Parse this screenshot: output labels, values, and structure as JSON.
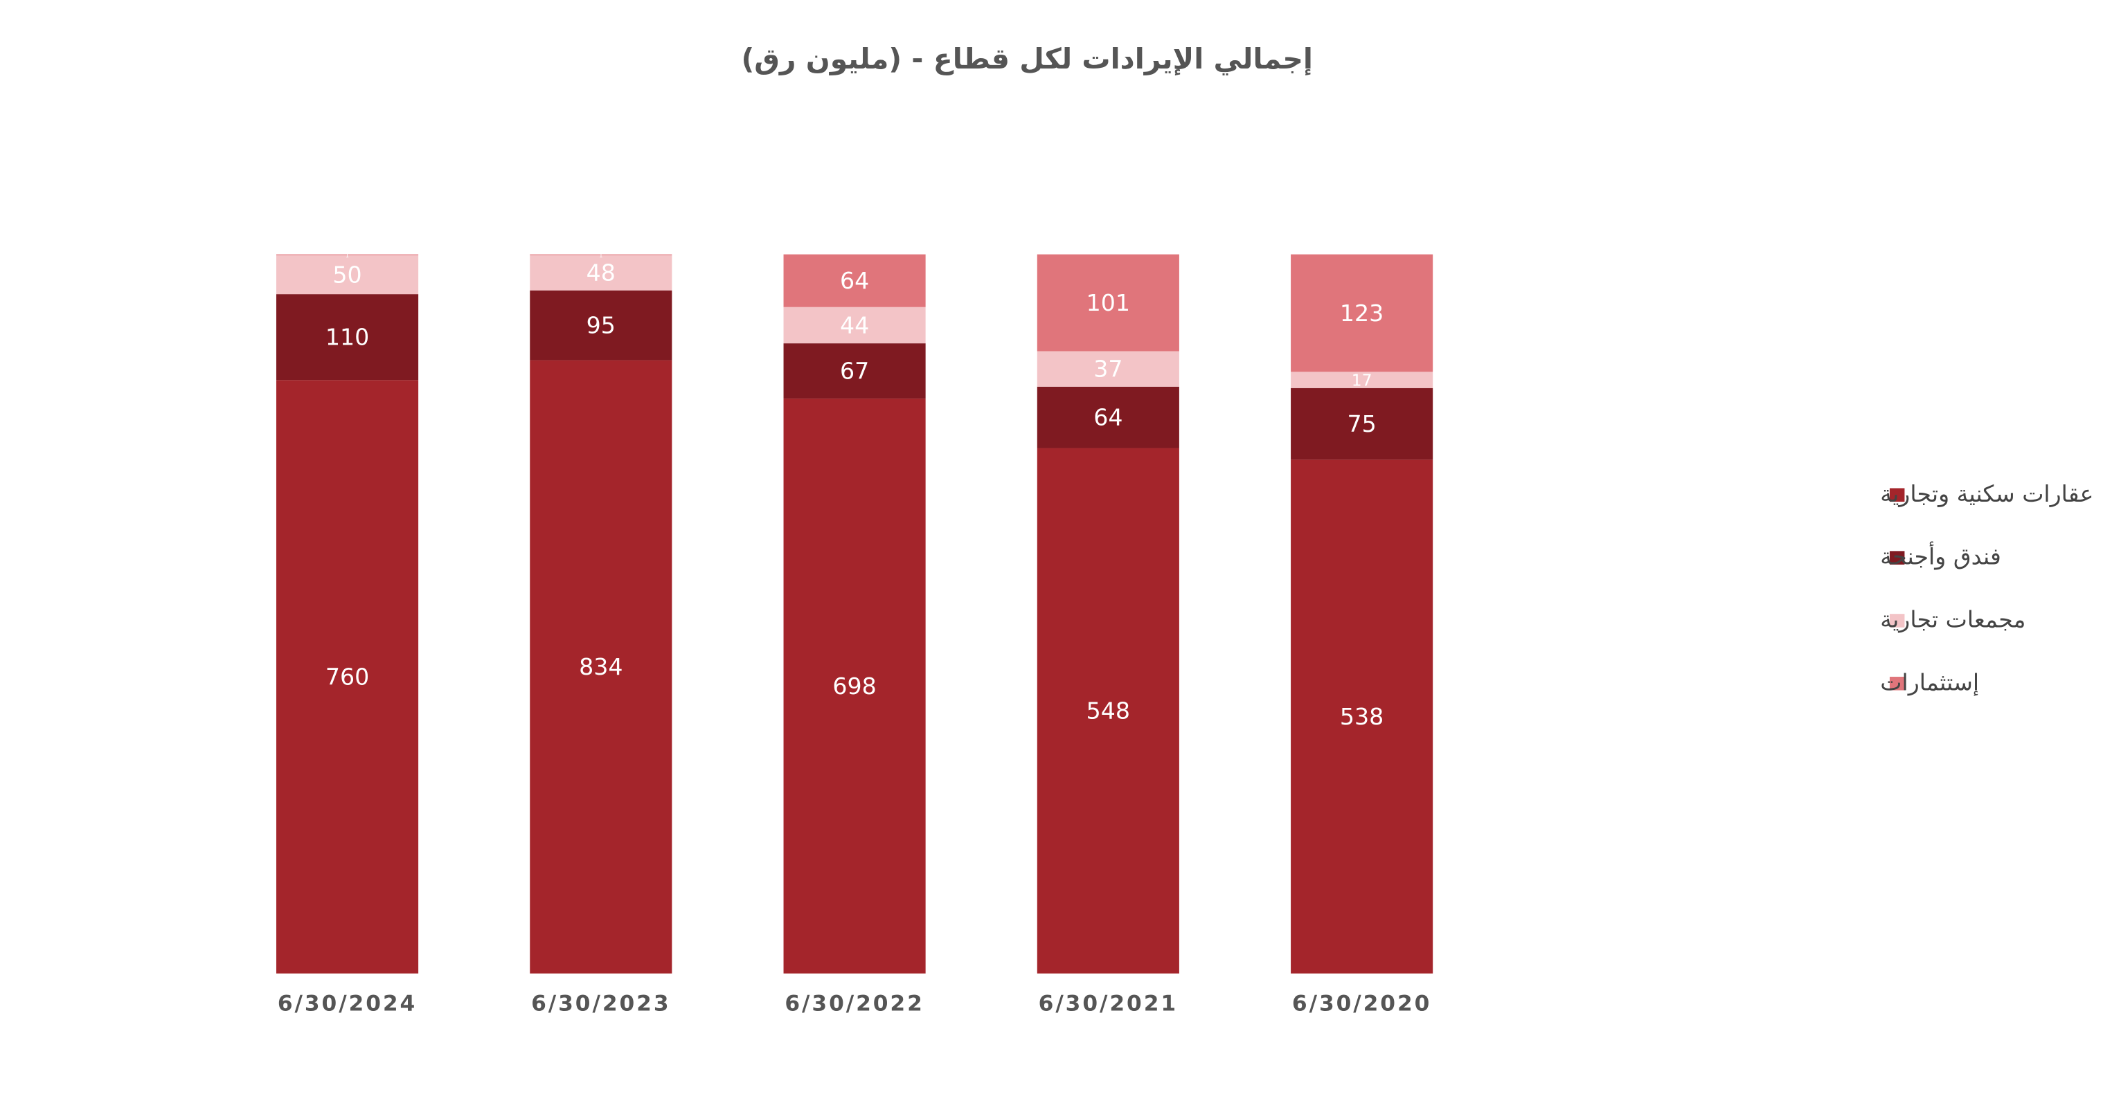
{
  "chart_data": {
    "type": "stacked_bar_percent",
    "title": "إجمالي الإيرادات لكل قطاع - (مليون رق)",
    "categories": [
      "6/30/2024",
      "6/30/2023",
      "6/30/2022",
      "6/30/2021",
      "6/30/2020"
    ],
    "series": [
      {
        "name": "عقارات سكنية وتجارية",
        "color": "#a4252b",
        "values": [
          760,
          834,
          698,
          548,
          538
        ]
      },
      {
        "name": "فندق وأجنحة",
        "color": "#7f1a21",
        "values": [
          110,
          95,
          67,
          64,
          75
        ]
      },
      {
        "name": "مجمعات تجارية",
        "color": "#f3c4c7",
        "values": [
          50,
          48,
          44,
          37,
          17
        ]
      },
      {
        "name": "إستثمارات",
        "color": "#e0757b",
        "values": [
          1,
          1,
          64,
          101,
          123
        ]
      }
    ],
    "legend": "right"
  }
}
